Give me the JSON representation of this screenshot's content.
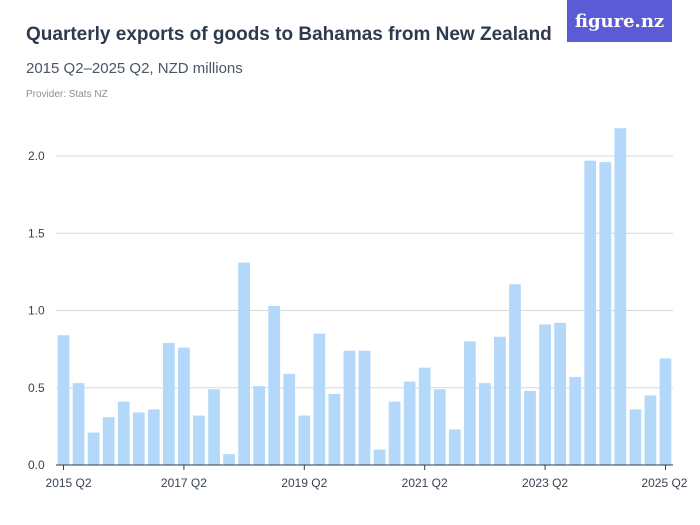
{
  "header": {
    "title": "Quarterly exports of goods to Bahamas from New Zealand",
    "subtitle": "2015 Q2–2025 Q2, NZD millions",
    "provider": "Provider: Stats NZ"
  },
  "logo": {
    "text": "figure.nz",
    "color": "#5b5bd6"
  },
  "chart_data": {
    "type": "bar",
    "title": "Quarterly exports of goods to Bahamas from New Zealand",
    "subtitle": "2015 Q2–2025 Q2, NZD millions",
    "xlabel": "",
    "ylabel": "",
    "ylim": [
      0,
      2.2
    ],
    "yticks": [
      0.0,
      0.5,
      1.0,
      1.5,
      2.0
    ],
    "ytick_labels": [
      "0.0",
      "0.5",
      "1.0",
      "1.5",
      "2.0"
    ],
    "grid": true,
    "bar_color": "#b3d8fa",
    "categories": [
      "2015 Q2",
      "2015 Q3",
      "2015 Q4",
      "2016 Q1",
      "2016 Q2",
      "2016 Q3",
      "2016 Q4",
      "2017 Q1",
      "2017 Q2",
      "2017 Q3",
      "2017 Q4",
      "2018 Q1",
      "2018 Q2",
      "2018 Q3",
      "2018 Q4",
      "2019 Q1",
      "2019 Q2",
      "2019 Q3",
      "2019 Q4",
      "2020 Q1",
      "2020 Q2",
      "2020 Q3",
      "2020 Q4",
      "2021 Q1",
      "2021 Q2",
      "2021 Q3",
      "2021 Q4",
      "2022 Q1",
      "2022 Q2",
      "2022 Q3",
      "2022 Q4",
      "2023 Q1",
      "2023 Q2",
      "2023 Q3",
      "2023 Q4",
      "2024 Q1",
      "2024 Q2",
      "2024 Q3",
      "2024 Q4",
      "2025 Q1",
      "2025 Q2"
    ],
    "values": [
      0.84,
      0.53,
      0.21,
      0.31,
      0.41,
      0.34,
      0.36,
      0.79,
      0.76,
      0.32,
      0.49,
      0.07,
      1.31,
      0.51,
      1.03,
      0.59,
      0.32,
      0.85,
      0.46,
      0.74,
      0.74,
      0.1,
      0.41,
      0.54,
      0.63,
      0.49,
      0.23,
      0.8,
      0.53,
      0.83,
      1.17,
      0.48,
      0.91,
      0.92,
      0.57,
      1.97,
      1.96,
      2.18,
      0.36,
      0.45,
      0.69
    ],
    "xtick_labels": [
      "2015 Q2",
      "2017 Q2",
      "2019 Q2",
      "2021 Q2",
      "2023 Q2",
      "2025 Q2"
    ]
  }
}
